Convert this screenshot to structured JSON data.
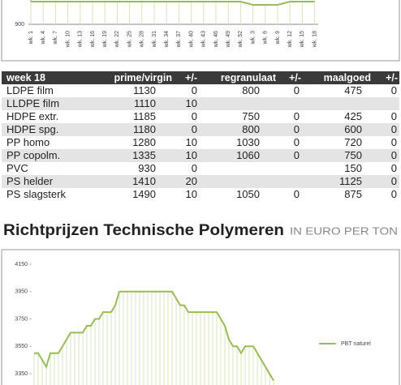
{
  "chart_data": [
    {
      "type": "line",
      "categories": [
        "wk. 1",
        "wk. 4",
        "wk. 7",
        "wk. 10",
        "wk. 13",
        "wk. 16",
        "wk. 19",
        "wk. 22",
        "wk. 25",
        "wk. 28",
        "wk. 31",
        "wk. 34",
        "wk. 37",
        "wk. 40",
        "wk. 43",
        "wk. 46",
        "wk. 49",
        "wk. 52",
        "wk. 3",
        "wk. 6",
        "wk. 9",
        "wk. 12",
        "wk. 15",
        "wk. 18"
      ],
      "values": [
        970,
        970,
        970,
        970,
        970,
        970,
        970,
        970,
        970,
        970,
        970,
        970,
        970,
        970,
        970,
        970,
        970,
        970,
        960,
        960,
        960,
        970,
        970,
        970
      ],
      "color": "#9bbb59",
      "ylim": [
        900,
        1000
      ],
      "yticks": [
        900
      ]
    },
    {
      "type": "line",
      "series": [
        {
          "name": "PBT naturel",
          "color": "#9bbb59",
          "values": [
            3500,
            3500,
            3450,
            3400,
            3500,
            3500,
            3500,
            3550,
            3600,
            3650,
            3650,
            3650,
            3650,
            3700,
            3700,
            3750,
            3750,
            3800,
            3800,
            3800,
            3850,
            3950,
            3950,
            3950,
            3950,
            3950,
            3950,
            3950,
            3950,
            3950,
            3950,
            3950,
            3950,
            3950,
            3950,
            3900,
            3850,
            3850,
            3800,
            3800,
            3800,
            3800,
            3800,
            3800,
            3800,
            3800,
            3750,
            3700,
            3600,
            3550,
            3550,
            3500,
            3550,
            3550,
            3550,
            3500,
            3450,
            3400,
            3350,
            3300
          ]
        }
      ],
      "ylim": [
        3150,
        4150
      ],
      "yticks": [
        4150,
        3950,
        3750,
        3550,
        3350
      ],
      "legend": "right"
    }
  ],
  "table": {
    "header": [
      "week 18",
      "prime/virgin",
      "+/-",
      "regranulaat",
      "+/-",
      "maalgoed",
      "+/-"
    ],
    "rows": [
      [
        "LDPE film",
        1130,
        0,
        800,
        0,
        475,
        0
      ],
      [
        "LLDPE film",
        1110,
        10,
        null,
        null,
        null,
        null
      ],
      [
        "HDPE extr.",
        1185,
        0,
        750,
        0,
        425,
        0
      ],
      [
        "HDPE spg.",
        1180,
        0,
        800,
        0,
        600,
        0
      ],
      [
        "PP homo",
        1280,
        10,
        1030,
        0,
        720,
        0
      ],
      [
        "PP copolm.",
        1335,
        10,
        1060,
        0,
        750,
        0
      ],
      [
        "PVC",
        930,
        0,
        null,
        null,
        150,
        0
      ],
      [
        "PS helder",
        1410,
        20,
        null,
        null,
        1125,
        0
      ],
      [
        "PS slagsterk",
        1490,
        10,
        1050,
        0,
        875,
        0
      ]
    ]
  },
  "heading": {
    "title": "Richtprijzen Technische Polymeren",
    "subtitle": "IN EURO PER TON"
  }
}
